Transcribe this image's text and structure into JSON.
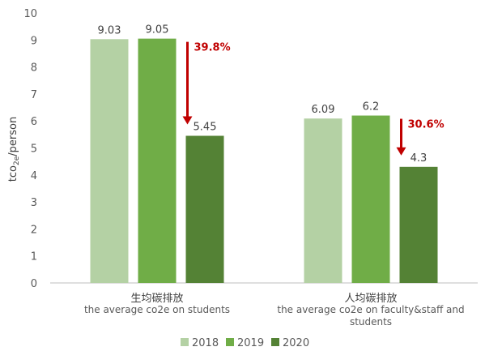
{
  "chart_data": {
    "type": "bar",
    "categories": [
      {
        "zh": "生均碳排放",
        "en_lines": [
          "the average co2e on students"
        ]
      },
      {
        "zh": "人均碳排放",
        "en_lines": [
          "the average co2e on faculty&staff and",
          "students"
        ]
      }
    ],
    "series": [
      {
        "name": "2018",
        "values": [
          9.03,
          6.09
        ],
        "value_labels": [
          "9.03",
          "6.09"
        ],
        "color": "#b4d1a4"
      },
      {
        "name": "2019",
        "values": [
          9.05,
          6.2
        ],
        "value_labels": [
          "9.05",
          "6.2"
        ],
        "color": "#70ad47"
      },
      {
        "name": "2020",
        "values": [
          5.45,
          4.3
        ],
        "value_labels": [
          "5.45",
          "4.3"
        ],
        "color": "#548235"
      }
    ],
    "ylabel": {
      "prefix": "tco",
      "sub": "2e",
      "suffix": "/person"
    },
    "ylim": [
      0,
      10
    ],
    "yticks": [
      0,
      1,
      2,
      3,
      4,
      5,
      6,
      7,
      8,
      9,
      10
    ],
    "annotations": [
      {
        "category_index": 0,
        "text": "39.8%",
        "color": "#c00000"
      },
      {
        "category_index": 1,
        "text": "30.6%",
        "color": "#c00000"
      }
    ],
    "grid": false,
    "legend_position": "bottom"
  }
}
